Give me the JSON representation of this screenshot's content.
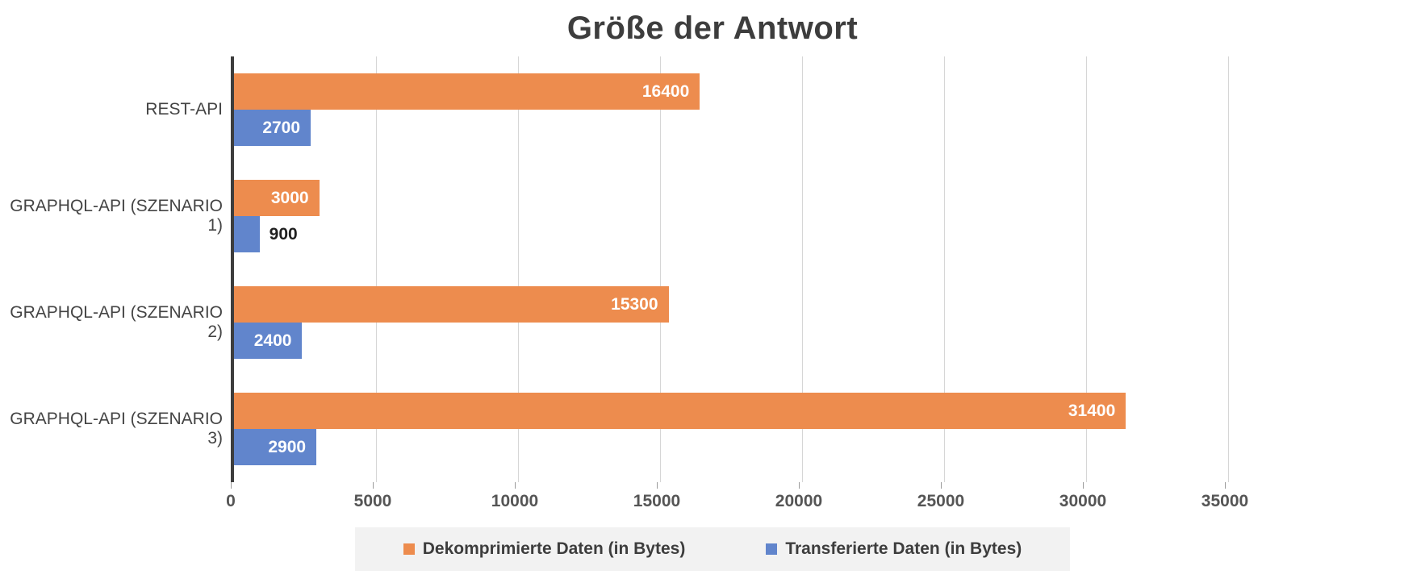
{
  "chart_data": {
    "type": "bar",
    "orientation": "horizontal",
    "title": "Größe der Antwort",
    "categories": [
      "REST-API",
      "GRAPHQL-API (SZENARIO 1)",
      "GRAPHQL-API (SZENARIO 2)",
      "GRAPHQL-API (SZENARIO 3)"
    ],
    "series": [
      {
        "name": "Dekomprimierte Daten (in Bytes)",
        "color": "#ED8C4E",
        "values": [
          16400,
          3000,
          15300,
          31400
        ]
      },
      {
        "name": "Transferierte Daten (in Bytes)",
        "color": "#6185CC",
        "values": [
          2700,
          900,
          2400,
          2900
        ]
      }
    ],
    "xlim": [
      0,
      35000
    ],
    "x_ticks": [
      0,
      5000,
      10000,
      15000,
      20000,
      25000,
      30000,
      35000
    ],
    "grid": true,
    "legend_position": "bottom",
    "data_label_inside_color": "#ffffff",
    "data_label_outside_color": "#1f1f1f",
    "inside_label_min_value": 2000
  }
}
